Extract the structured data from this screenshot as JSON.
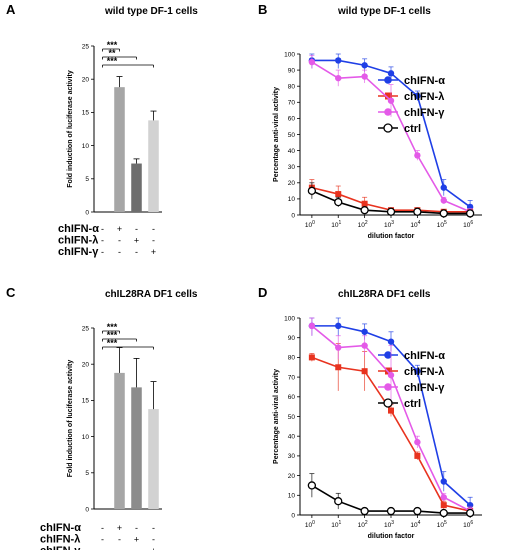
{
  "chart_data": [
    {
      "panel": "A",
      "type": "bar",
      "title": "wild type DF-1 cells",
      "ylabel": "Fold induction of luciferase activity",
      "ylim": [
        0,
        25
      ],
      "yticks": [
        0,
        5,
        10,
        15,
        20,
        25
      ],
      "condition_labels": [
        "chIFN-α",
        "chIFN-λ",
        "chIFN-γ"
      ],
      "treatment_matrix": [
        [
          "-",
          "+",
          "-",
          "-"
        ],
        [
          "-",
          "-",
          "+",
          "-"
        ],
        [
          "-",
          "-",
          "-",
          "+"
        ]
      ],
      "values": [
        0,
        18.8,
        7.3,
        13.8
      ],
      "errors": [
        0,
        1.6,
        0.7,
        1.4
      ],
      "bar_colors": [
        "#ffffff",
        "#a6a6a6",
        "#6e6e6e",
        "#d2d2d2"
      ],
      "significance": [
        "***",
        "**",
        "***"
      ]
    },
    {
      "panel": "B",
      "type": "line",
      "title": "wild type DF-1 cells",
      "xlabel": "dilution factor",
      "ylabel": "Percentage anti-viral activity",
      "x_ticks": [
        "0",
        "1",
        "2",
        "3",
        "4",
        "5",
        "6"
      ],
      "x_tick_base": "10",
      "x": [
        0,
        1,
        2,
        3,
        4,
        5,
        6
      ],
      "ylim": [
        0,
        100
      ],
      "yticks": [
        0,
        10,
        20,
        30,
        40,
        50,
        60,
        70,
        80,
        90,
        100
      ],
      "series": [
        {
          "name": "chIFN-α",
          "color": "#1f3fe6",
          "marker": "circle",
          "values": [
            96,
            96,
            93,
            88,
            74,
            17,
            5
          ],
          "errors": [
            5,
            5,
            4,
            4,
            3,
            5,
            4
          ]
        },
        {
          "name": "chIFN-λ",
          "color": "#e8331f",
          "marker": "square",
          "values": [
            17,
            13,
            7,
            3,
            3,
            2,
            2
          ],
          "errors": [
            5,
            5,
            4,
            1,
            1,
            1,
            1
          ]
        },
        {
          "name": "chIFN-γ",
          "color": "#e45ae8",
          "marker": "circle",
          "values": [
            95,
            85,
            86,
            71,
            37,
            9,
            2
          ],
          "errors": [
            4,
            5,
            4,
            10,
            3,
            2,
            2
          ]
        },
        {
          "name": "ctrl",
          "color": "#000000",
          "marker": "open-circle",
          "values": [
            15,
            8,
            3,
            2,
            2,
            1,
            1
          ],
          "errors": [
            5,
            3,
            1,
            1,
            1,
            1,
            1
          ]
        }
      ]
    },
    {
      "panel": "C",
      "type": "bar",
      "title": "chIL28RA DF1 cells",
      "ylabel": "Fold induction of luciferase activity",
      "ylim": [
        0,
        25
      ],
      "yticks": [
        0,
        5,
        10,
        15,
        20,
        25
      ],
      "condition_labels": [
        "chIFN-α",
        "chIFN-λ",
        "chIFN-γ"
      ],
      "treatment_matrix": [
        [
          "-",
          "+",
          "-",
          "-"
        ],
        [
          "-",
          "-",
          "+",
          "-"
        ],
        [
          "-",
          "-",
          "-",
          "+"
        ]
      ],
      "values": [
        0,
        18.8,
        16.8,
        13.8
      ],
      "errors": [
        0,
        3.5,
        4.0,
        3.8
      ],
      "bar_colors": [
        "#ffffff",
        "#a6a6a6",
        "#8c8c8c",
        "#d2d2d2"
      ],
      "significance": [
        "***",
        "***",
        "***"
      ]
    },
    {
      "panel": "D",
      "type": "line",
      "title": "chIL28RA DF1 cells",
      "xlabel": "dilution factor",
      "ylabel": "Percentage anti-viral activity",
      "x_ticks": [
        "0",
        "1",
        "2",
        "3",
        "4",
        "5",
        "6"
      ],
      "x_tick_base": "10",
      "x": [
        0,
        1,
        2,
        3,
        4,
        5,
        6
      ],
      "ylim": [
        0,
        100
      ],
      "yticks": [
        0,
        10,
        20,
        30,
        40,
        50,
        60,
        70,
        80,
        90,
        100
      ],
      "series": [
        {
          "name": "chIFN-α",
          "color": "#1f3fe6",
          "marker": "circle",
          "values": [
            96,
            96,
            93,
            88,
            73,
            17,
            5
          ],
          "errors": [
            5,
            5,
            4,
            5,
            3,
            5,
            4
          ]
        },
        {
          "name": "chIFN-λ",
          "color": "#e8331f",
          "marker": "square",
          "values": [
            80,
            75,
            73,
            53,
            30,
            5,
            2
          ],
          "errors": [
            2,
            12,
            10,
            3,
            2,
            2,
            2
          ]
        },
        {
          "name": "chIFN-γ",
          "color": "#e45ae8",
          "marker": "circle",
          "values": [
            96,
            85,
            86,
            71,
            37,
            9,
            2
          ],
          "errors": [
            5,
            6,
            5,
            15,
            3,
            2,
            2
          ]
        },
        {
          "name": "ctrl",
          "color": "#000000",
          "marker": "open-circle",
          "values": [
            15,
            7,
            2,
            2,
            2,
            1,
            1
          ],
          "errors": [
            6,
            4,
            1,
            1,
            1,
            1,
            1
          ]
        }
      ]
    }
  ]
}
